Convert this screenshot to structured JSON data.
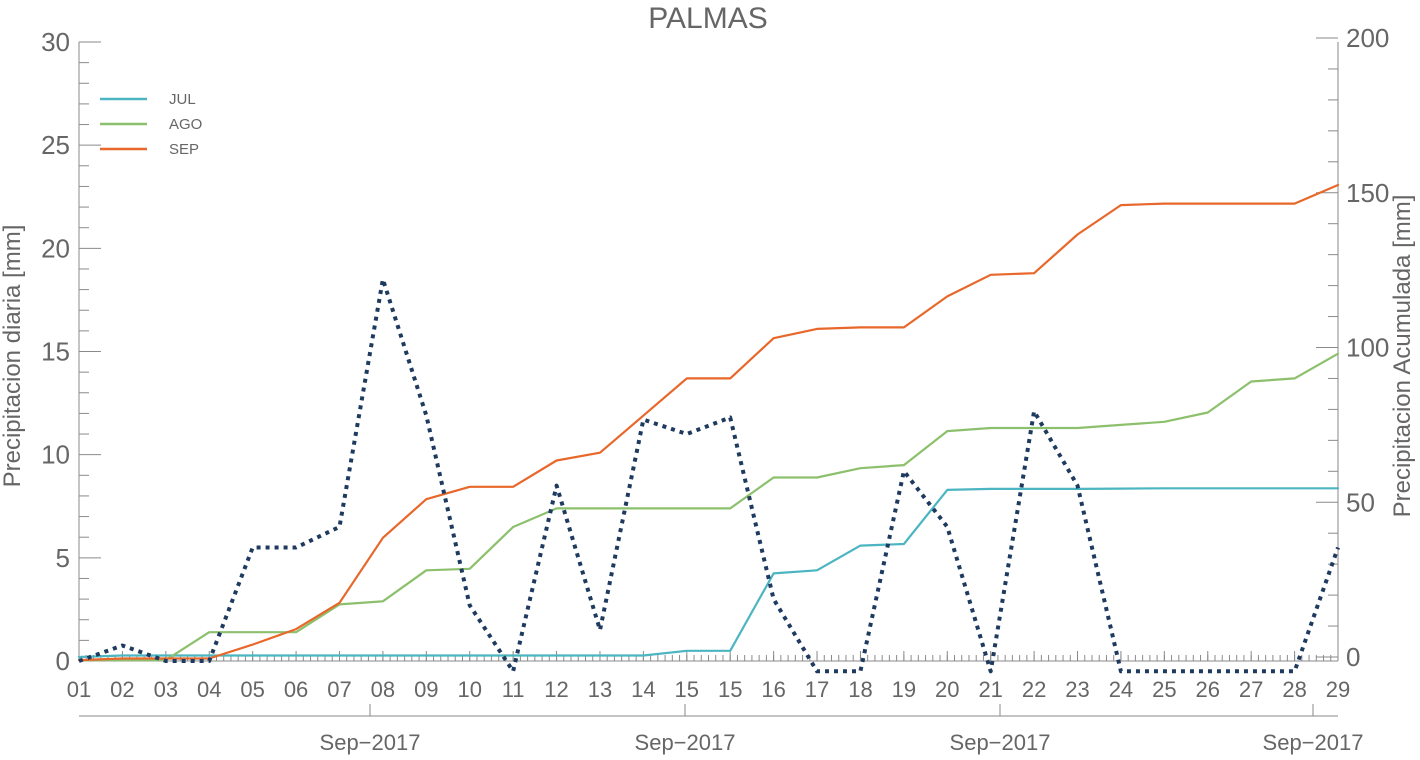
{
  "chart_data": {
    "type": "line",
    "title": "PALMAS",
    "ylabel_left": "Precipitacion diaria [mm]",
    "ylabel_right": "Precipitacion Acumulada [mm]",
    "ylim_left": [
      0,
      30
    ],
    "ylim_right": [
      0,
      200
    ],
    "yticks_left": [
      "0",
      "5",
      "10",
      "15",
      "20",
      "25",
      "30"
    ],
    "yticks_right": [
      "0",
      "50",
      "100",
      "150",
      "200"
    ],
    "categories": [
      "01",
      "02",
      "03",
      "04",
      "05",
      "06",
      "07",
      "08",
      "09",
      "10",
      "11",
      "12",
      "13",
      "14",
      "15",
      "15",
      "16",
      "17",
      "18",
      "19",
      "20",
      "21",
      "22",
      "23",
      "24",
      "25",
      "26",
      "27",
      "28",
      "29"
    ],
    "month_labels": [
      "Sep−2017",
      "Sep−2017",
      "Sep−2017",
      "Sep−2017"
    ],
    "legend_placement": "top-left",
    "grid": false,
    "series": [
      {
        "name": "JUL",
        "axis": "right",
        "color": "#4bb5c1",
        "values": [
          0,
          0.5,
          0.5,
          0.5,
          0.5,
          0.5,
          0.5,
          0.5,
          0.5,
          0.5,
          0.5,
          0.5,
          0.5,
          0.5,
          2,
          2,
          27,
          28,
          36,
          36.5,
          54,
          54.3,
          54.3,
          54.3,
          54.4,
          54.5,
          54.5,
          54.5,
          54.5,
          54.5
        ]
      },
      {
        "name": "AGO",
        "axis": "right",
        "color": "#8cc06c",
        "values": [
          -1,
          -1,
          -1,
          8,
          8,
          8,
          17,
          18,
          28,
          28.5,
          42,
          48,
          48,
          48,
          48,
          48,
          58,
          58,
          61,
          62,
          73,
          74,
          74,
          74,
          75,
          76,
          79,
          89,
          90,
          98
        ]
      },
      {
        "name": "SEP",
        "axis": "right",
        "color": "#e8672a",
        "values": [
          -1,
          -0.5,
          -0.5,
          -0.5,
          4,
          9,
          17.5,
          38.5,
          51,
          55,
          55,
          63.5,
          66,
          78,
          90,
          90,
          103,
          106,
          106.5,
          106.5,
          116.5,
          123.5,
          124,
          136.5,
          146,
          146.5,
          146.5,
          146.5,
          146.5,
          152.5
        ]
      },
      {
        "name": "",
        "axis": "left",
        "color": "#1e3a5f",
        "dashed": true,
        "values": [
          0,
          0.75,
          0,
          0,
          5.5,
          5.5,
          6.5,
          18.5,
          11.9,
          2.7,
          -0.5,
          8.5,
          1.5,
          11.7,
          11,
          11.8,
          3,
          -0.5,
          -0.5,
          9.2,
          6.5,
          -0.5,
          12.1,
          8.5,
          -0.5,
          -0.5,
          -0.5,
          -0.5,
          -0.5,
          5.5
        ]
      }
    ]
  }
}
